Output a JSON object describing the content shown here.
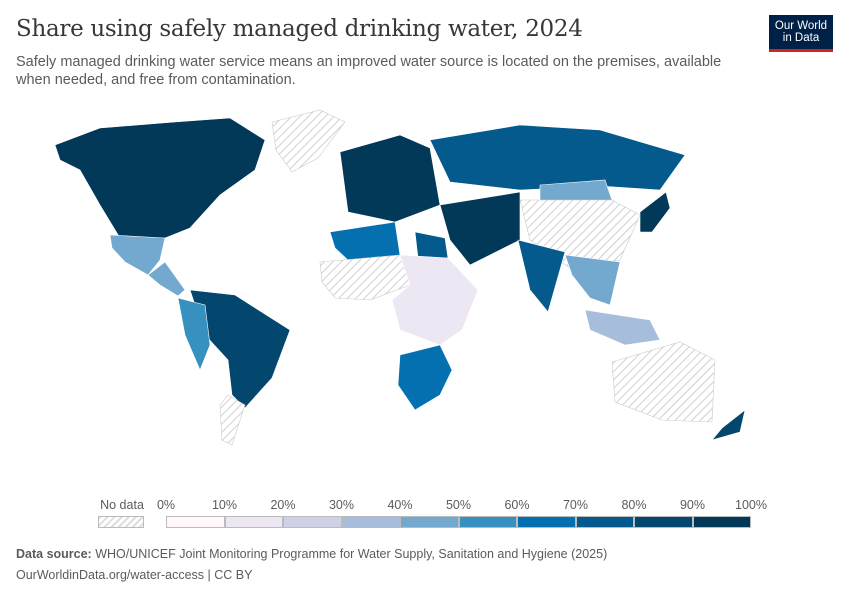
{
  "header": {
    "title": "Share using safely managed drinking water, 2024",
    "subtitle": "Safely managed drinking water service means an improved water source is located on the premises, available when needed, and free from contamination.",
    "logo_line1": "Our World",
    "logo_line2": "in Data"
  },
  "legend": {
    "no_data_label": "No data",
    "tick_labels": [
      "0%",
      "10%",
      "20%",
      "30%",
      "40%",
      "50%",
      "60%",
      "70%",
      "80%",
      "90%",
      "100%"
    ],
    "bin_colors": [
      "#fff7fb",
      "#ece7f2",
      "#d0d1e6",
      "#a6bddb",
      "#74a9cf",
      "#3690c0",
      "#0570b0",
      "#045a8d",
      "#03466e",
      "#023858"
    ],
    "no_data_pattern": "hatched-gray"
  },
  "map": {
    "projection": "robinson-like world map",
    "regions": [
      {
        "name": "North America (Canada, United States)",
        "value_pct": 95
      },
      {
        "name": "Greenland",
        "value_pct": null
      },
      {
        "name": "Mexico",
        "value_pct": 45
      },
      {
        "name": "Central America",
        "value_pct": 40
      },
      {
        "name": "South America (Brazil etc.)",
        "value_pct": 85
      },
      {
        "name": "Peru / Andes",
        "value_pct": 55
      },
      {
        "name": "Argentina",
        "value_pct": null
      },
      {
        "name": "Europe",
        "value_pct": 95
      },
      {
        "name": "Russia",
        "value_pct": 78
      },
      {
        "name": "North Africa (Algeria)",
        "value_pct": 65
      },
      {
        "name": "Egypt",
        "value_pct": 70
      },
      {
        "name": "Sahel / West Africa",
        "value_pct": null
      },
      {
        "name": "Central / East Africa",
        "value_pct": 15
      },
      {
        "name": "Southern Africa",
        "value_pct": 65
      },
      {
        "name": "Middle East / Central Asia",
        "value_pct": 90
      },
      {
        "name": "Mongolia",
        "value_pct": 40
      },
      {
        "name": "China",
        "value_pct": null
      },
      {
        "name": "India",
        "value_pct": 75
      },
      {
        "name": "Southeast Asia",
        "value_pct": 45
      },
      {
        "name": "Japan",
        "value_pct": 95
      },
      {
        "name": "Australia",
        "value_pct": null
      },
      {
        "name": "New Zealand",
        "value_pct": 85
      },
      {
        "name": "Indonesia",
        "value_pct": 35
      }
    ]
  },
  "footer": {
    "source_label": "Data source:",
    "source_text": "WHO/UNICEF Joint Monitoring Programme for Water Supply, Sanitation and Hygiene (2025)",
    "link": "OurWorldinData.org/water-access | CC BY"
  }
}
